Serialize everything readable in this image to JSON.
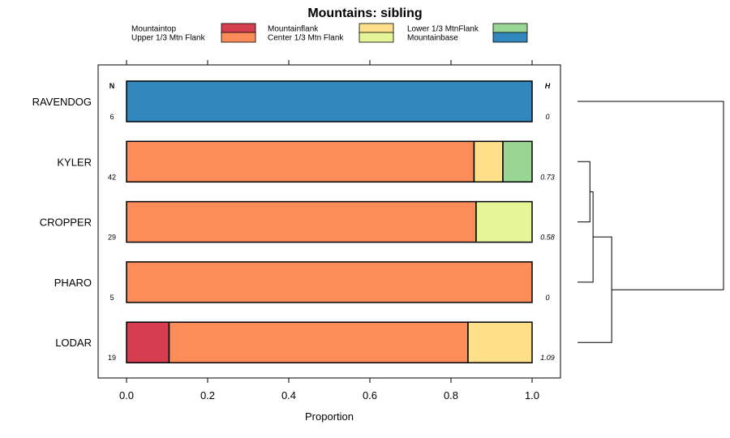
{
  "chart_data": {
    "type": "bar",
    "orientation": "horizontal",
    "stacked": true,
    "title": "Mountains: sibling",
    "xlabel": "Proportion",
    "ylabel": "",
    "xlim": [
      0,
      1
    ],
    "xticks": [
      "0.0",
      "0.2",
      "0.4",
      "0.6",
      "0.8",
      "1.0"
    ],
    "legend": [
      {
        "name": "Mountaintop",
        "color": "#d53e4f"
      },
      {
        "name": "Upper 1/3 Mtn Flank",
        "color": "#fc8d59"
      },
      {
        "name": "Mountainflank",
        "color": "#fee08b"
      },
      {
        "name": "Center 1/3 Mtn Flank",
        "color": "#e6f598"
      },
      {
        "name": "Lower 1/3 MtnFlank",
        "color": "#99d594"
      },
      {
        "name": "Mountainbase",
        "color": "#3288bd"
      }
    ],
    "n_header": "N",
    "h_header": "H",
    "categories": [
      "RAVENDOG",
      "KYLER",
      "CROPPER",
      "PHARO",
      "LODAR"
    ],
    "n": [
      "6",
      "42",
      "29",
      "5",
      "19"
    ],
    "h": [
      "0",
      "0.73",
      "0.58",
      "0",
      "1.09"
    ],
    "series": [
      {
        "name": "Mountaintop",
        "values": [
          0,
          0,
          0,
          0,
          0.105
        ]
      },
      {
        "name": "Upper 1/3 Mtn Flank",
        "values": [
          0,
          0.857,
          0.862,
          1.0,
          0.737
        ]
      },
      {
        "name": "Mountainflank",
        "values": [
          0,
          0.071,
          0,
          0,
          0.158
        ]
      },
      {
        "name": "Center 1/3 Mtn Flank",
        "values": [
          0,
          0,
          0.138,
          0,
          0
        ]
      },
      {
        "name": "Lower 1/3 MtnFlank",
        "values": [
          0,
          0.072,
          0,
          0,
          0
        ]
      },
      {
        "name": "Mountainbase",
        "values": [
          1.0,
          0,
          0,
          0,
          0
        ]
      }
    ],
    "dendrogram": {
      "leaves": [
        "RAVENDOG",
        "KYLER",
        "CROPPER",
        "PHARO",
        "LODAR"
      ],
      "merges": [
        {
          "a": "KYLER",
          "b": "CROPPER",
          "height": 0.04
        },
        {
          "a": "KYLER+CROPPER",
          "b": "PHARO",
          "height": 0.05
        },
        {
          "a": "KYLER+CROPPER+PHARO",
          "b": "LODAR",
          "height": 0.11
        },
        {
          "a": "RAVENDOG",
          "b": "KYLER+CROPPER+PHARO+LODAR",
          "height": 0.47
        }
      ]
    }
  }
}
